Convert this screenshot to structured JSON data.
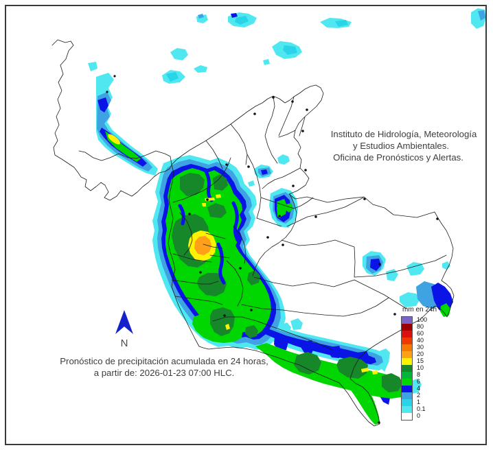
{
  "palette": {
    "c0": "#ffffff",
    "c01": "#4fe8f0",
    "c1": "#29d3e8",
    "c2": "#3fa3e3",
    "c4": "#0a14e6",
    "c6": "#00d600",
    "c8": "#00b43c",
    "c10": "#17882a",
    "c15": "#fff200",
    "c20": "#ffa018",
    "c30": "#f57800",
    "c40": "#f03800",
    "c60": "#dc1010",
    "c80": "#9e0000",
    "c100": "#7a64c8",
    "arrow": "#1522cc",
    "line": "#1a1a1a",
    "text": "#3d3d3d"
  },
  "legend": {
    "title": "mm en 24h",
    "entries": [
      {
        "label": "100",
        "key": "c100"
      },
      {
        "label": "80",
        "key": "c80"
      },
      {
        "label": "60",
        "key": "c60"
      },
      {
        "label": "40",
        "key": "c40"
      },
      {
        "label": "30",
        "key": "c30"
      },
      {
        "label": "20",
        "key": "c20"
      },
      {
        "label": "15",
        "key": "c15"
      },
      {
        "label": "10",
        "key": "c10"
      },
      {
        "label": "8",
        "key": "c8"
      },
      {
        "label": "6",
        "key": "c6"
      },
      {
        "label": "4",
        "key": "c4"
      },
      {
        "label": "2",
        "key": "c2"
      },
      {
        "label": "1",
        "key": "c1"
      },
      {
        "label": "0.1",
        "key": "c01"
      },
      {
        "label": "0",
        "key": "c0"
      }
    ]
  },
  "annotations": {
    "org_line1": "Instituto de Hidrología, Meteorología",
    "org_line2": "y Estudios Ambientales.",
    "org_line3": "Oficina de Pronósticos y Alertas.",
    "caption_line1": "Pronóstico de precipitación acumulada en 24 horas,",
    "caption_line2": "a partir de: 2026-01-23 07:00 HLC.",
    "compass_label": "N"
  }
}
